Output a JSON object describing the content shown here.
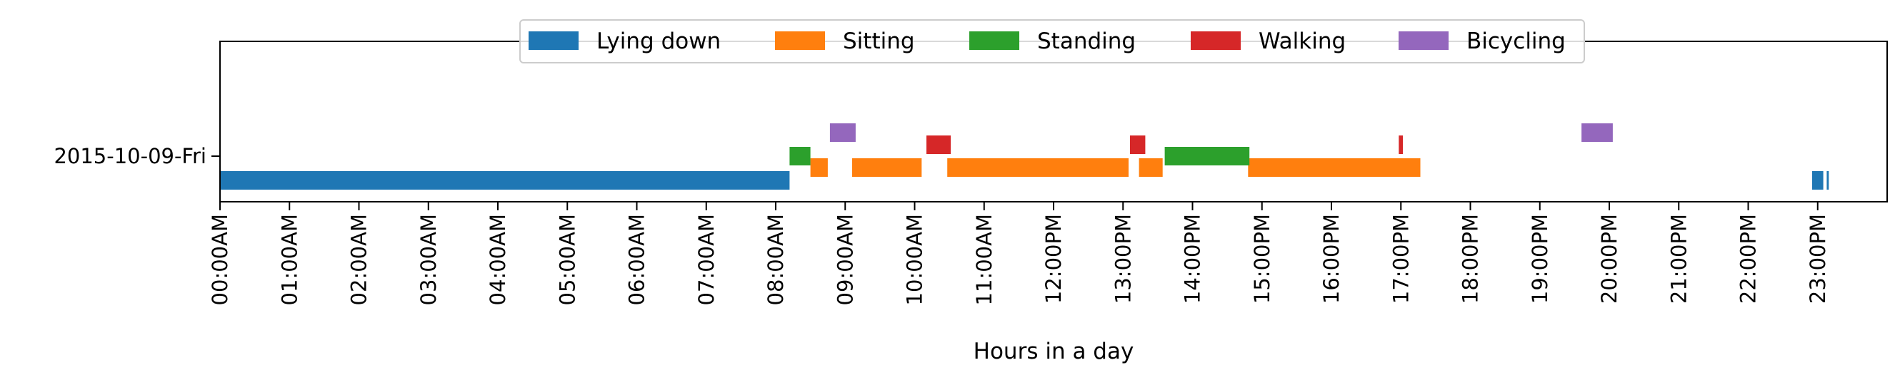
{
  "chart_data": {
    "type": "timeline",
    "xlabel": "Hours in a day",
    "x_range_hours": [
      0,
      24
    ],
    "x_tick_labels": [
      "00:00AM",
      "01:00AM",
      "02:00AM",
      "03:00AM",
      "04:00AM",
      "05:00AM",
      "06:00AM",
      "07:00AM",
      "08:00AM",
      "09:00AM",
      "10:00AM",
      "11:00AM",
      "12:00PM",
      "13:00PM",
      "14:00PM",
      "15:00PM",
      "16:00PM",
      "17:00PM",
      "18:00PM",
      "19:00PM",
      "20:00PM",
      "21:00PM",
      "22:00PM",
      "23:00PM"
    ],
    "y_tick_labels": [
      "2015-10-09-Fri"
    ],
    "legend_position": "top-center",
    "series": [
      {
        "name": "Lying down",
        "color": "#1f77b4",
        "intervals_hours": [
          [
            0.0,
            8.2
          ],
          [
            22.92,
            23.08
          ],
          [
            23.13,
            23.16
          ]
        ]
      },
      {
        "name": "Sitting",
        "color": "#ff7f0e",
        "intervals_hours": [
          [
            8.5,
            8.75
          ],
          [
            9.1,
            10.1
          ],
          [
            10.47,
            13.08
          ],
          [
            13.23,
            13.57
          ],
          [
            14.8,
            17.28
          ]
        ]
      },
      {
        "name": "Standing",
        "color": "#2ca02c",
        "intervals_hours": [
          [
            8.2,
            8.5
          ],
          [
            13.6,
            14.82
          ]
        ]
      },
      {
        "name": "Walking",
        "color": "#d62728",
        "intervals_hours": [
          [
            10.17,
            10.52
          ],
          [
            13.1,
            13.32
          ],
          [
            16.97,
            17.03
          ]
        ]
      },
      {
        "name": "Bicycling",
        "color": "#9467bd",
        "intervals_hours": [
          [
            8.78,
            9.15
          ],
          [
            19.6,
            20.05
          ]
        ]
      }
    ]
  }
}
